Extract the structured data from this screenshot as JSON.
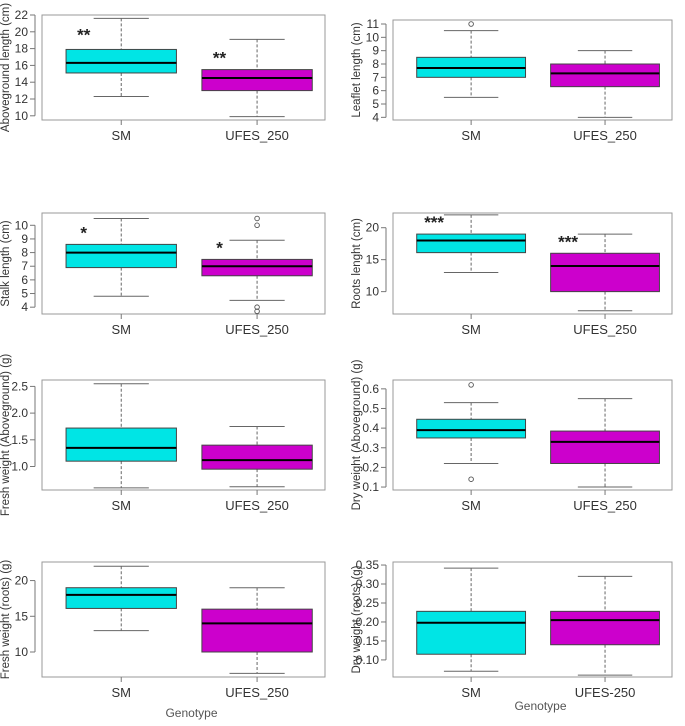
{
  "colors": {
    "sm": "#00e5e5",
    "ufes": "#cc00cc",
    "border": "#444444",
    "whisker": "#666666",
    "median": "#000000",
    "frame": "#999999"
  },
  "chart_data": [
    {
      "type": "boxplot",
      "ylabel": "Aboveground length (cm)",
      "xlabel": "",
      "ylim": [
        9.5,
        22
      ],
      "yticks": [
        "10",
        "12",
        "14",
        "16",
        "18",
        "20",
        "22"
      ],
      "categories": [
        "SM",
        "UFES_250"
      ],
      "boxes": [
        {
          "min": 12.3,
          "q1": 15.1,
          "median": 16.3,
          "q3": 17.9,
          "max": 21.6,
          "outliers": [],
          "sig": "**"
        },
        {
          "min": 9.9,
          "q1": 13.0,
          "median": 14.5,
          "q3": 15.5,
          "max": 19.1,
          "outliers": [],
          "sig": "**"
        }
      ]
    },
    {
      "type": "boxplot",
      "ylabel": "Leaflet length (cm)",
      "xlabel": "",
      "ylim": [
        3.8,
        11.3
      ],
      "yticks": [
        "4",
        "5",
        "6",
        "7",
        "8",
        "9",
        "10",
        "11"
      ],
      "categories": [
        "SM",
        "UFES_250"
      ],
      "boxes": [
        {
          "min": 5.5,
          "q1": 7.0,
          "median": 7.7,
          "q3": 8.5,
          "max": 10.5,
          "outliers": [
            11.0
          ],
          "sig": ""
        },
        {
          "min": 4.0,
          "q1": 6.3,
          "median": 7.3,
          "q3": 8.0,
          "max": 9.0,
          "outliers": [],
          "sig": ""
        }
      ]
    },
    {
      "type": "boxplot",
      "ylabel": "Stalk length (cm)",
      "xlabel": "",
      "ylim": [
        3.5,
        10.9
      ],
      "yticks": [
        "4",
        "5",
        "6",
        "7",
        "8",
        "9",
        "10"
      ],
      "categories": [
        "SM",
        "UFES_250"
      ],
      "boxes": [
        {
          "min": 4.8,
          "q1": 6.9,
          "median": 8.0,
          "q3": 8.6,
          "max": 10.5,
          "outliers": [],
          "sig": "*"
        },
        {
          "min": 4.5,
          "q1": 6.3,
          "median": 7.0,
          "q3": 7.5,
          "max": 8.9,
          "outliers": [
            10.5,
            10.0,
            4.0,
            3.7
          ],
          "sig": "*"
        }
      ]
    },
    {
      "type": "boxplot",
      "ylabel": "Roots lenght (cm)",
      "xlabel": "",
      "ylim": [
        6.5,
        22.3
      ],
      "yticks": [
        "10",
        "15",
        "20"
      ],
      "categories": [
        "SM",
        "UFES_250"
      ],
      "boxes": [
        {
          "min": 13.0,
          "q1": 16.1,
          "median": 18.0,
          "q3": 19.0,
          "max": 22.0,
          "outliers": [],
          "sig": "***"
        },
        {
          "min": 7.0,
          "q1": 10.0,
          "median": 14.0,
          "q3": 16.0,
          "max": 19.0,
          "outliers": [],
          "sig": "***"
        }
      ]
    },
    {
      "type": "boxplot",
      "ylabel": "Fresh weight (Aboveground) (g)",
      "xlabel": "",
      "ylim": [
        0.56,
        2.62
      ],
      "yticks": [
        "1.0",
        "1.5",
        "2.0",
        "2.5"
      ],
      "categories": [
        "SM",
        "UFES_250"
      ],
      "boxes": [
        {
          "min": 0.6,
          "q1": 1.1,
          "median": 1.35,
          "q3": 1.72,
          "max": 2.55,
          "outliers": [],
          "sig": ""
        },
        {
          "min": 0.62,
          "q1": 0.95,
          "median": 1.12,
          "q3": 1.4,
          "max": 1.75,
          "outliers": [],
          "sig": ""
        }
      ]
    },
    {
      "type": "boxplot",
      "ylabel": "Dry weight (Aboveground) (g)",
      "xlabel": "",
      "ylim": [
        0.085,
        0.645
      ],
      "yticks": [
        "0.1",
        "0.2",
        "0.3",
        "0.4",
        "0.5",
        "0.6"
      ],
      "categories": [
        "SM",
        "UFES_250"
      ],
      "boxes": [
        {
          "min": 0.22,
          "q1": 0.35,
          "median": 0.39,
          "q3": 0.445,
          "max": 0.53,
          "outliers": [
            0.62,
            0.14
          ],
          "sig": ""
        },
        {
          "min": 0.1,
          "q1": 0.22,
          "median": 0.33,
          "q3": 0.385,
          "max": 0.55,
          "outliers": [],
          "sig": ""
        }
      ]
    },
    {
      "type": "boxplot",
      "ylabel": "Fresh weight (roots) (g)",
      "xlabel": "Genotype",
      "ylim": [
        6.5,
        22.6
      ],
      "yticks": [
        "10",
        "15",
        "20"
      ],
      "categories": [
        "SM",
        "UFES_250"
      ],
      "boxes": [
        {
          "min": 13.0,
          "q1": 16.1,
          "median": 18.0,
          "q3": 19.0,
          "max": 22.0,
          "outliers": [],
          "sig": ""
        },
        {
          "min": 7.0,
          "q1": 10.0,
          "median": 14.0,
          "q3": 16.0,
          "max": 19.0,
          "outliers": [],
          "sig": ""
        }
      ]
    },
    {
      "type": "boxplot",
      "ylabel": "Dry weight (roots) (g)",
      "xlabel": "Genotype",
      "ylim": [
        0.055,
        0.358
      ],
      "yticks": [
        "0.10",
        "0.15",
        "0.20",
        "0.25",
        "0.30",
        "0.35"
      ],
      "categories": [
        "SM",
        "UFES-250"
      ],
      "boxes": [
        {
          "min": 0.07,
          "q1": 0.115,
          "median": 0.198,
          "q3": 0.228,
          "max": 0.342,
          "outliers": [],
          "sig": ""
        },
        {
          "min": 0.06,
          "q1": 0.14,
          "median": 0.205,
          "q3": 0.228,
          "max": 0.32,
          "outliers": [],
          "sig": ""
        }
      ]
    }
  ]
}
